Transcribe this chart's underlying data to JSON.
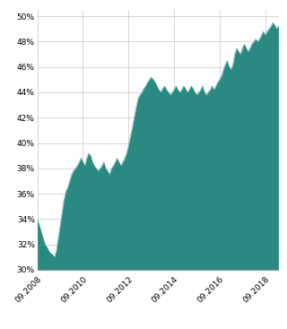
{
  "fill_color": "#2a8a82",
  "background_color": "#ffffff",
  "grid_color": "#c8c8c8",
  "yticks": [
    30,
    32,
    34,
    36,
    38,
    40,
    42,
    44,
    46,
    48,
    50
  ],
  "ylim": [
    30,
    50.5
  ],
  "xtick_labels": [
    "09.2008",
    "09.2010",
    "09.2012",
    "09.2014",
    "09.2016",
    "09.2018"
  ],
  "title": "",
  "ylabel": "",
  "xlabel": "",
  "figsize": [
    3.2,
    3.67
  ],
  "dpi": 100,
  "data": {
    "values": [
      34.0,
      33.5,
      33.0,
      32.5,
      32.0,
      31.8,
      31.5,
      31.3,
      31.2,
      31.0,
      31.5,
      32.5,
      33.5,
      34.5,
      35.5,
      36.2,
      36.5,
      37.0,
      37.5,
      37.8,
      38.0,
      38.2,
      38.5,
      38.8,
      38.5,
      38.2,
      38.8,
      39.2,
      39.0,
      38.5,
      38.2,
      38.0,
      37.8,
      38.0,
      38.2,
      38.5,
      38.0,
      37.8,
      37.5,
      38.0,
      38.2,
      38.5,
      38.8,
      38.5,
      38.2,
      38.5,
      38.8,
      39.2,
      39.8,
      40.5,
      41.2,
      42.0,
      42.8,
      43.5,
      43.8,
      44.0,
      44.3,
      44.5,
      44.8,
      45.0,
      45.2,
      45.0,
      44.8,
      44.5,
      44.2,
      44.0,
      44.3,
      44.5,
      44.2,
      44.0,
      43.8,
      44.0,
      44.2,
      44.5,
      44.2,
      44.0,
      44.2,
      44.5,
      44.3,
      44.0,
      44.2,
      44.5,
      44.3,
      44.0,
      43.8,
      44.0,
      44.2,
      44.5,
      44.0,
      43.8,
      44.0,
      44.2,
      44.5,
      44.2,
      44.5,
      44.8,
      45.0,
      45.3,
      45.8,
      46.2,
      46.5,
      46.0,
      45.8,
      46.2,
      47.0,
      47.5,
      47.2,
      47.0,
      47.5,
      47.8,
      47.5,
      47.2,
      47.5,
      47.8,
      48.0,
      48.2,
      48.0,
      48.2,
      48.5,
      48.8,
      48.5,
      48.8,
      49.0,
      49.2,
      49.5,
      49.3,
      49.0,
      49.3
    ]
  },
  "n_points": 132,
  "xtick_positions_norm": [
    0,
    24,
    48,
    72,
    96,
    120
  ]
}
